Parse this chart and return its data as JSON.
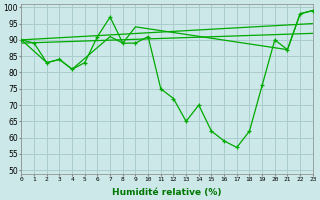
{
  "xlabel": "Humidité relative (%)",
  "background_color": "#cce8e8",
  "grid_color": "#aacccc",
  "line_color": "#00aa00",
  "xlim": [
    0,
    23
  ],
  "ylim": [
    49,
    101
  ],
  "yticks": [
    50,
    55,
    60,
    65,
    70,
    75,
    80,
    85,
    90,
    95,
    100
  ],
  "xticks": [
    0,
    1,
    2,
    3,
    4,
    5,
    6,
    7,
    8,
    9,
    10,
    11,
    12,
    13,
    14,
    15,
    16,
    17,
    18,
    19,
    20,
    21,
    22,
    23
  ],
  "line1_x": [
    0,
    1,
    2,
    3,
    4,
    5,
    6,
    7,
    8,
    9,
    10,
    11,
    12,
    13,
    14,
    15,
    16,
    17,
    18,
    19,
    20,
    21,
    22,
    23
  ],
  "line1_y": [
    90,
    89,
    83,
    84,
    81,
    83,
    91,
    97,
    89,
    89,
    91,
    75,
    72,
    65,
    70,
    62,
    59,
    57,
    62,
    76,
    90,
    87,
    98,
    99
  ],
  "line2_x": [
    0,
    2,
    3,
    4,
    7,
    8,
    9,
    21,
    22,
    23
  ],
  "line2_y": [
    90,
    83,
    84,
    81,
    91,
    89,
    94,
    87,
    98,
    99
  ],
  "line3_x": [
    0,
    23
  ],
  "line3_y": [
    90,
    95
  ],
  "line4_x": [
    0,
    23
  ],
  "line4_y": [
    89,
    92
  ]
}
